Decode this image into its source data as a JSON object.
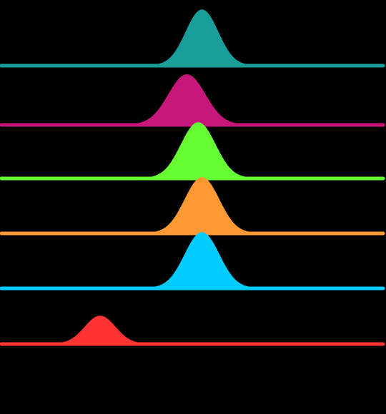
{
  "chart_data": {
    "type": "area",
    "subtype": "ridgeline",
    "title": "",
    "xlabel": "",
    "ylabel": "",
    "background": "#000000",
    "grid": false,
    "legend": "none",
    "series": [
      {
        "color": "#1a9e9a",
        "mean": 0.52,
        "sd": 0.042,
        "height": 1.0
      },
      {
        "color": "#c8177a",
        "mean": 0.48,
        "sd": 0.048,
        "height": 0.9
      },
      {
        "color": "#66ff33",
        "mean": 0.51,
        "sd": 0.045,
        "height": 1.0
      },
      {
        "color": "#ff9933",
        "mean": 0.52,
        "sd": 0.045,
        "height": 1.0
      },
      {
        "color": "#00ccff",
        "mean": 0.52,
        "sd": 0.045,
        "height": 1.0
      },
      {
        "color": "#ff3333",
        "mean": 0.25,
        "sd": 0.04,
        "height": 0.5
      }
    ]
  }
}
